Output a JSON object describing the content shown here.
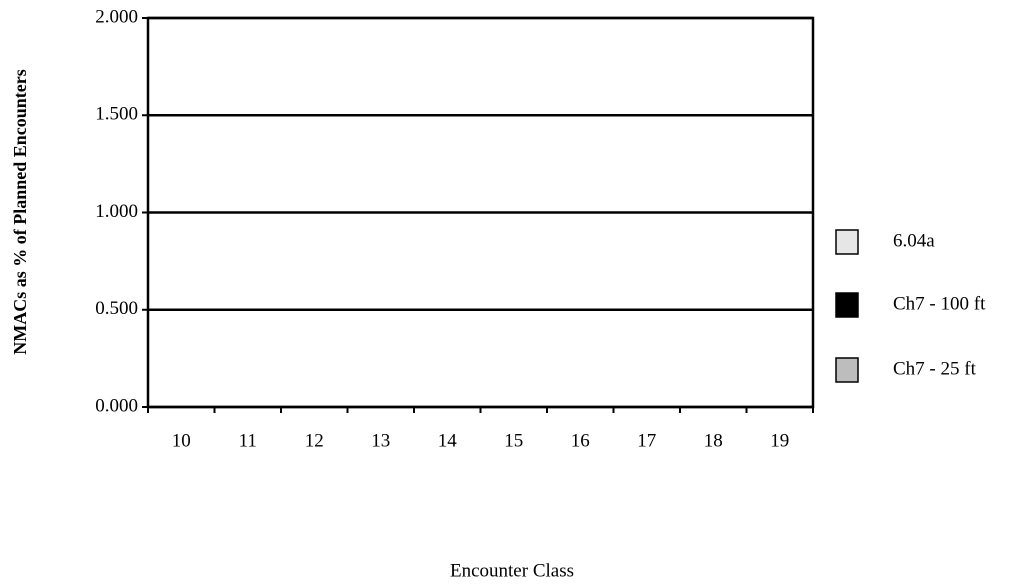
{
  "chart_data": {
    "type": "bar",
    "xlabel": "Encounter Class",
    "ylabel": "NMACs as % of Planned Encounters",
    "categories": [
      "10",
      "11",
      "12",
      "13",
      "14",
      "15",
      "16",
      "17",
      "18",
      "19"
    ],
    "series": [
      {
        "name": "6.04a",
        "color": "#e6e6e6",
        "values": [
          0,
          0,
          0,
          0,
          0,
          0,
          0,
          0,
          0,
          0
        ]
      },
      {
        "name": "Ch7 - 100 ft",
        "color": "#000000",
        "values": [
          0,
          0,
          0,
          0,
          0,
          0,
          0,
          0,
          0,
          0
        ]
      },
      {
        "name": "Ch7 - 25 ft",
        "color": "#bdbdbd",
        "values": [
          0,
          0,
          0,
          0,
          0,
          0,
          0,
          0,
          0,
          0
        ]
      }
    ],
    "ylim": [
      0,
      2
    ],
    "yticks": [
      {
        "value": 0,
        "label": "0.000"
      },
      {
        "value": 0.5,
        "label": "0.500"
      },
      {
        "value": 1,
        "label": "1.000"
      },
      {
        "value": 1.5,
        "label": "1.500"
      },
      {
        "value": 2,
        "label": "2.000"
      }
    ],
    "grid": true,
    "legend": "right"
  }
}
